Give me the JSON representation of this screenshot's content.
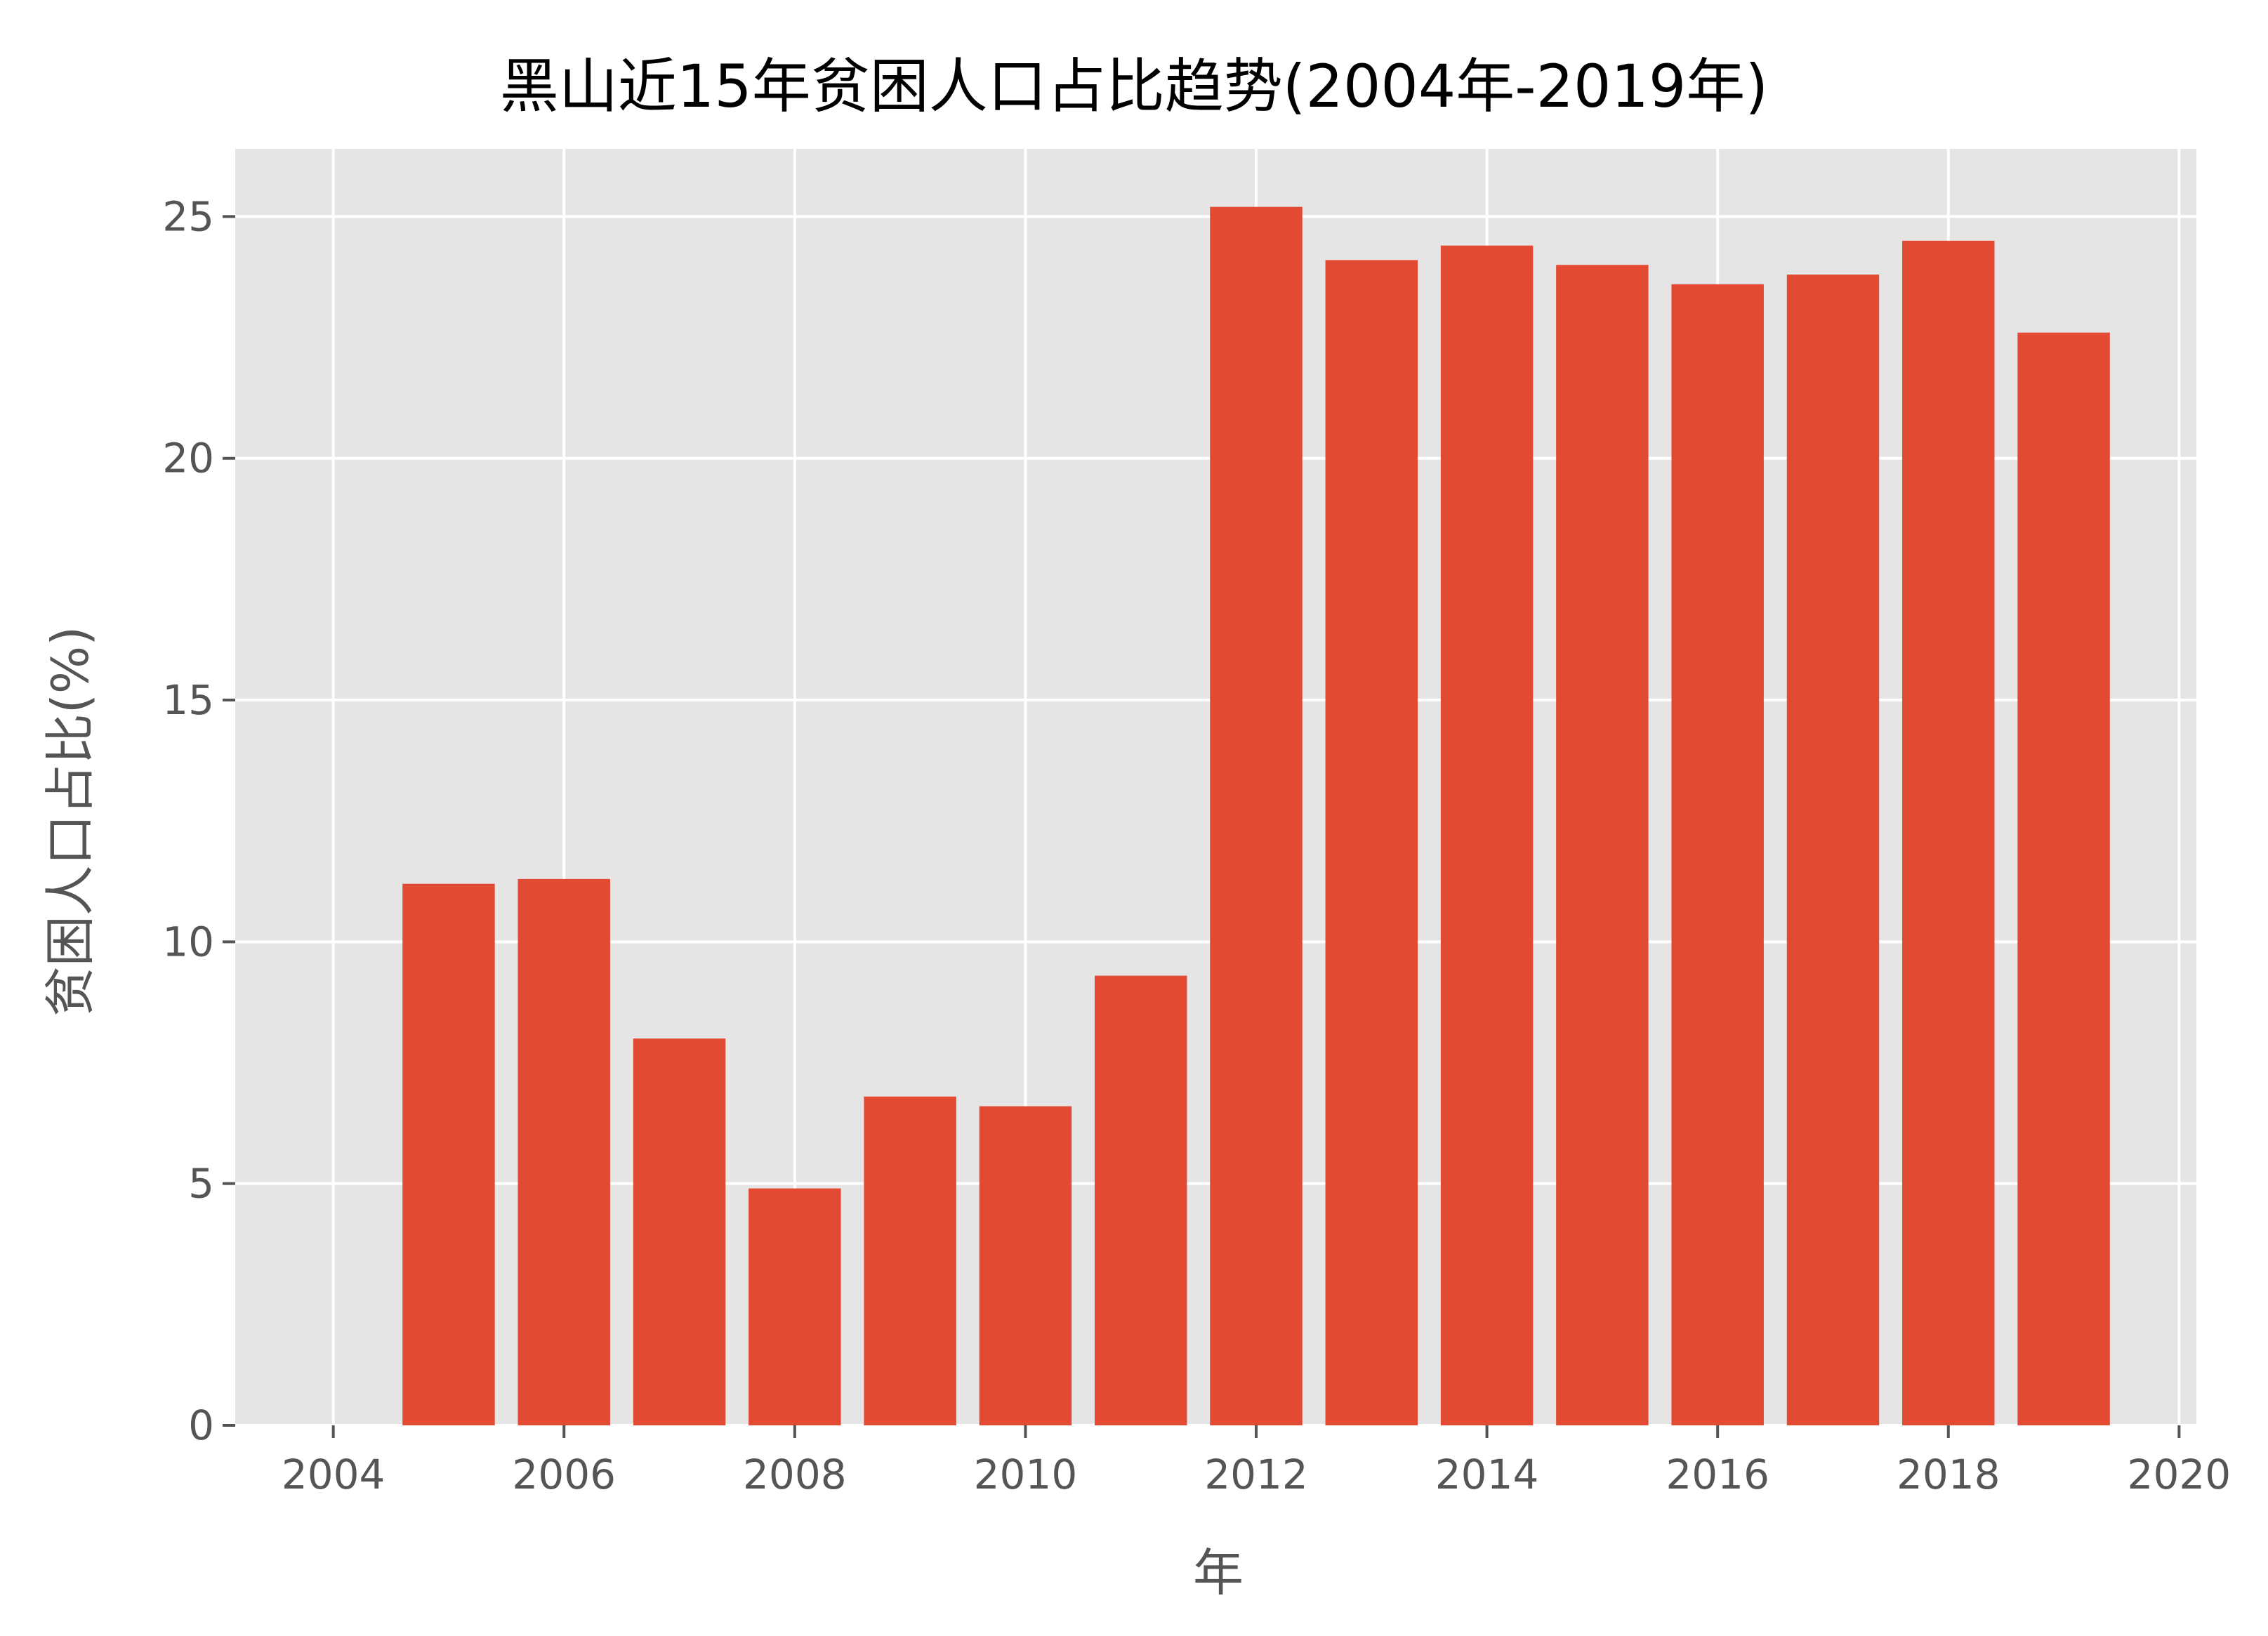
{
  "chart_data": {
    "type": "bar",
    "title": "黑山近15年贫困人口占比趋势(2004年-2019年)",
    "xlabel": "年",
    "ylabel": "贫困人口占比(%)",
    "x": [
      2005,
      2006,
      2007,
      2008,
      2009,
      2010,
      2011,
      2012,
      2013,
      2014,
      2015,
      2016,
      2017,
      2018,
      2019
    ],
    "values": [
      11.2,
      11.3,
      8.0,
      4.9,
      6.8,
      6.6,
      9.3,
      25.2,
      24.1,
      24.4,
      24.0,
      23.6,
      23.8,
      24.5,
      22.6
    ],
    "xlim": [
      2003.15,
      2020.15
    ],
    "ylim": [
      0,
      26.4
    ],
    "xticks": [
      "2004",
      "2006",
      "2008",
      "2010",
      "2012",
      "2014",
      "2016",
      "2018",
      "2020"
    ],
    "yticks": [
      "0",
      "5",
      "10",
      "15",
      "20",
      "25"
    ],
    "grid": true,
    "colors": {
      "bar": "#E24A33",
      "plot_bg": "#E5E5E5",
      "grid": "#FFFFFF",
      "text": "#555555",
      "title": "#000000"
    }
  }
}
